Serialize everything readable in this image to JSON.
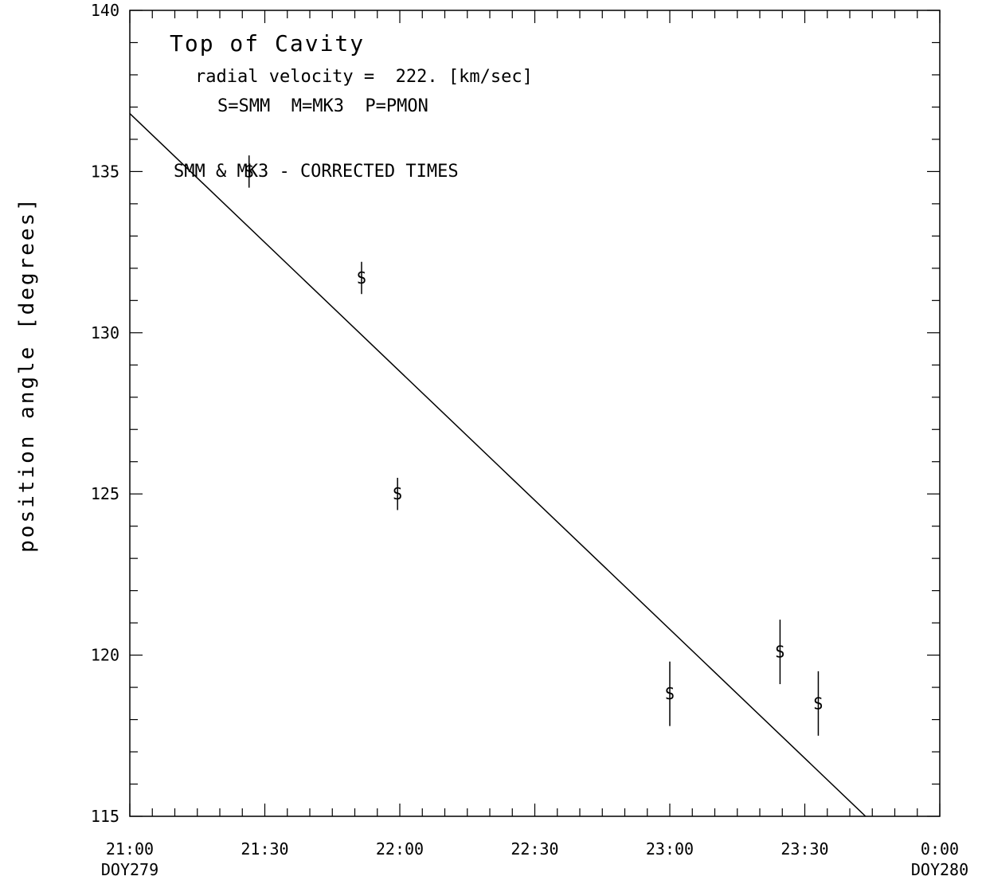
{
  "chart_data": {
    "type": "scatter",
    "title": "Top of Cavity",
    "annotations": {
      "velocity": "radial velocity =  222. [km/sec]",
      "legend": "S=SMM  M=MK3  P=PMON",
      "note": "SMM & MK3 - CORRECTED TIMES"
    },
    "ylabel": "position angle [degrees]",
    "xlabel": "",
    "xlim_minutes": [
      0,
      180
    ],
    "ylim": [
      115,
      140
    ],
    "grid": false,
    "x_tick_minutes": [
      0,
      30,
      60,
      90,
      120,
      150,
      180
    ],
    "x_tick_labels": [
      "21:00",
      "21:30",
      "22:00",
      "22:30",
      "23:00",
      "23:30",
      "0:00"
    ],
    "x_sub_labels": [
      "DOY279",
      "",
      "",
      "",
      "",
      "",
      "DOY280"
    ],
    "y_ticks": [
      115,
      120,
      125,
      130,
      135,
      140
    ],
    "y_tick_labels": [
      "115",
      "120",
      "125",
      "130",
      "135",
      "140"
    ],
    "series": [
      {
        "marker": "S",
        "points": [
          {
            "time": "21:26",
            "t": 26.5,
            "y": 135.0,
            "err": 0.5
          },
          {
            "time": "21:51",
            "t": 51.5,
            "y": 131.7,
            "err": 0.5
          },
          {
            "time": "21:59",
            "t": 59.5,
            "y": 125.0,
            "err": 0.5
          },
          {
            "time": "23:00",
            "t": 120.0,
            "y": 118.8,
            "err": 1.0
          },
          {
            "time": "23:25",
            "t": 144.5,
            "y": 120.1,
            "err": 1.0
          },
          {
            "time": "23:33",
            "t": 153.0,
            "y": 118.5,
            "err": 1.0
          }
        ]
      }
    ],
    "fit_line": {
      "t": [
        0,
        163.5
      ],
      "y": [
        136.8,
        115.0
      ]
    }
  }
}
